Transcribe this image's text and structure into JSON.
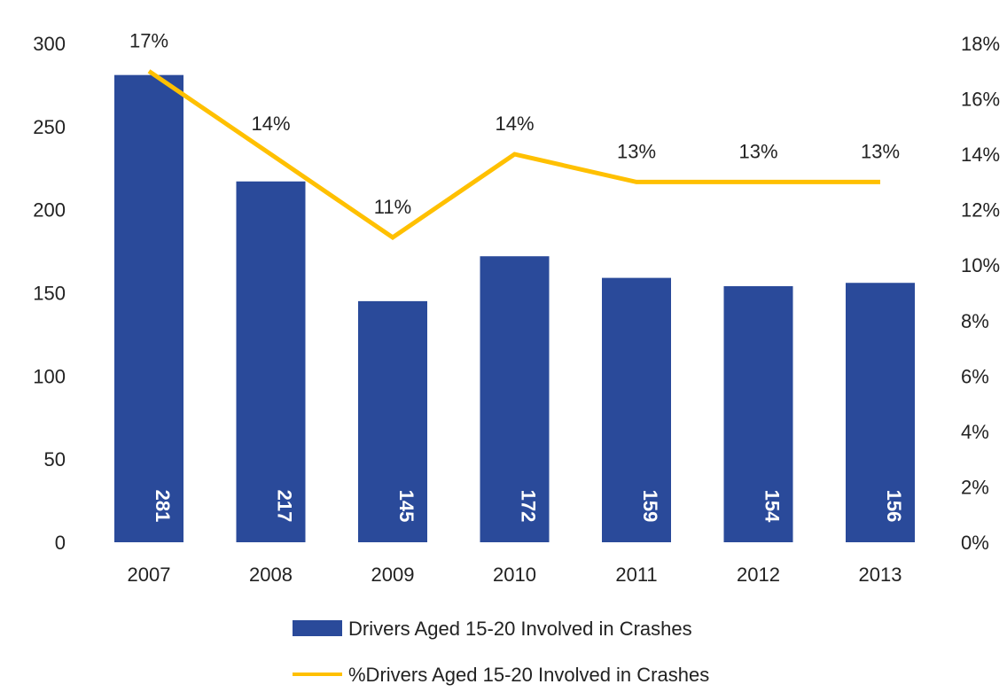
{
  "chart_data": {
    "type": "bar",
    "title": "",
    "xlabel": "",
    "ylabel": "",
    "categories": [
      "2007",
      "2008",
      "2009",
      "2010",
      "2011",
      "2012",
      "2013"
    ],
    "series": [
      {
        "name": "Drivers Aged 15-20 Involved in Crashes",
        "type": "bar",
        "axis": "left",
        "color": "#2A4A9A",
        "values": [
          281,
          217,
          145,
          172,
          159,
          154,
          156
        ],
        "value_labels": [
          "281",
          "217",
          "145",
          "172",
          "159",
          "154",
          "156"
        ]
      },
      {
        "name": "%Drivers Aged 15-20 Involved in Crashes",
        "type": "line",
        "axis": "right",
        "color": "#FFC000",
        "values": [
          17,
          14,
          11,
          14,
          13,
          13,
          13
        ],
        "value_labels": [
          "17%",
          "14%",
          "11%",
          "14%",
          "13%",
          "13%",
          "13%"
        ]
      }
    ],
    "ylim": [
      0,
      300
    ],
    "y_ticks": [
      "0",
      "50",
      "100",
      "150",
      "200",
      "250",
      "300"
    ],
    "y2lim": [
      0,
      18
    ],
    "y2_ticks": [
      "0%",
      "2%",
      "4%",
      "6%",
      "8%",
      "10%",
      "12%",
      "14%",
      "16%",
      "18%"
    ],
    "grid": false,
    "legend_position": "bottom"
  }
}
